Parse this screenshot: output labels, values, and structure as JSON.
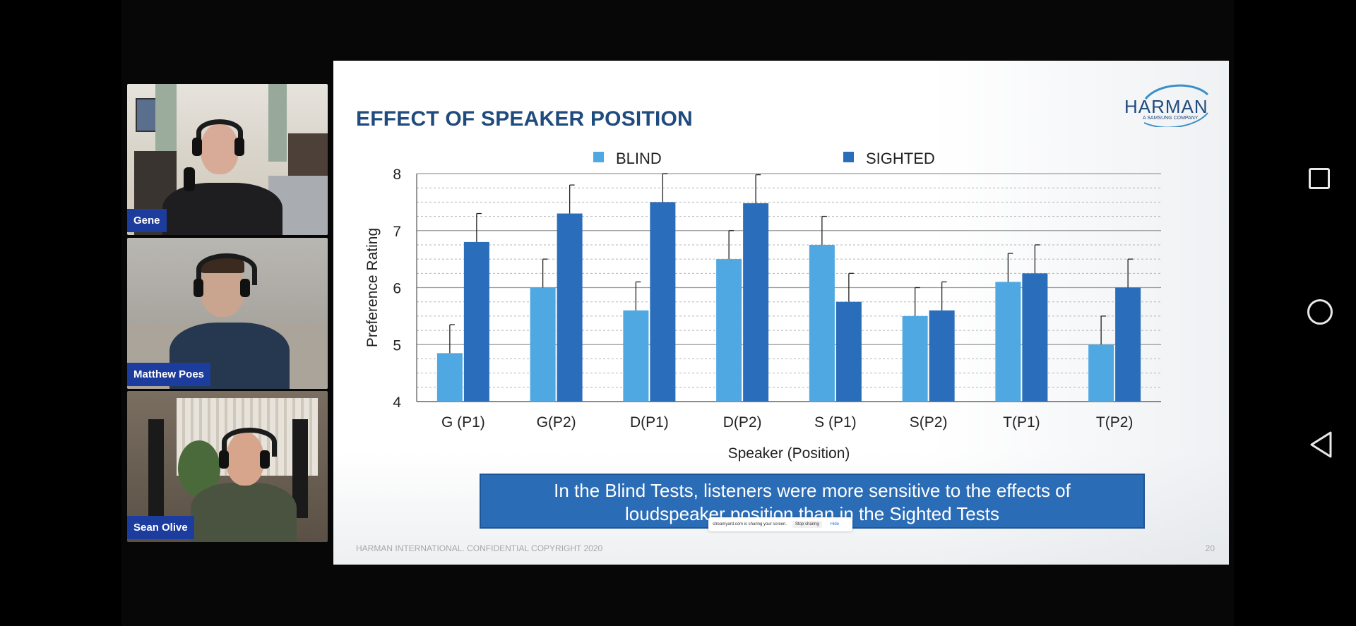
{
  "participants": [
    {
      "name": "Gene"
    },
    {
      "name": "Matthew Poes"
    },
    {
      "name": "Sean Olive"
    }
  ],
  "slide": {
    "title": "EFFECT OF SPEAKER POSITION",
    "logo_word": "HARMAN",
    "logo_sub": "A SAMSUNG COMPANY",
    "callout_line1": "In the Blind Tests, listeners were more sensitive to the effects of",
    "callout_line2": "loudspeaker position than in the Sighted Tests",
    "footer": "HARMAN INTERNATIONAL. CONFIDENTIAL COPYRIGHT 2020",
    "page_number": "20"
  },
  "share_bar": {
    "message": "streamyard.com is sharing your screen.",
    "stop_label": "Stop sharing",
    "hide_label": "Hide"
  },
  "chart_data": {
    "type": "bar",
    "categories": [
      "G (P1)",
      "G(P2)",
      "D(P1)",
      "D(P2)",
      "S (P1)",
      "S(P2)",
      "T(P1)",
      "T(P2)"
    ],
    "series": [
      {
        "name": "BLIND",
        "color": "#4fa8e2",
        "values": [
          4.85,
          6.0,
          5.6,
          6.5,
          6.75,
          5.5,
          6.1,
          5.0
        ],
        "error": [
          0.5,
          0.5,
          0.5,
          0.5,
          0.5,
          0.5,
          0.5,
          0.5
        ]
      },
      {
        "name": "SIGHTED",
        "color": "#2a6dbb",
        "values": [
          6.8,
          7.3,
          7.5,
          7.48,
          5.75,
          5.6,
          6.25,
          6.0
        ],
        "error": [
          0.5,
          0.5,
          0.5,
          0.5,
          0.5,
          0.5,
          0.5,
          0.5
        ]
      }
    ],
    "xlabel": "Speaker (Position)",
    "ylabel": "Preference Rating",
    "ylim": [
      4,
      8
    ],
    "yticks": [
      "4",
      "5",
      "6",
      "7",
      "8"
    ],
    "legend_position": "top",
    "grid": true
  }
}
